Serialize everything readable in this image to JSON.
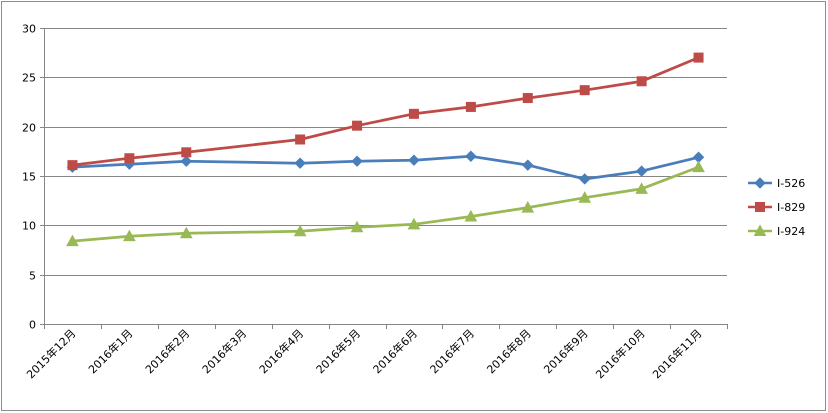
{
  "chart_data": {
    "type": "line",
    "title": "",
    "xlabel": "",
    "ylabel": "",
    "ylim": [
      0,
      30
    ],
    "yticks": [
      0,
      5,
      10,
      15,
      20,
      25,
      30
    ],
    "grid": true,
    "legend_position": "right",
    "x_positions": [
      0,
      1,
      2,
      3,
      4,
      5,
      6,
      7,
      8,
      9,
      10,
      11
    ],
    "categories": [
      "2015年12月",
      "2016年1月",
      "2016年2月",
      "2016年3月",
      "2016年4月",
      "2016年5月",
      "2016年6月",
      "2016年7月",
      "2016年8月",
      "2016年9月",
      "2016年10月",
      "2016年11月"
    ],
    "series": [
      {
        "name": "I-526",
        "color": "#4a7ebb",
        "marker": "diamond",
        "points": [
          [
            0,
            15.9
          ],
          [
            1,
            16.2
          ],
          [
            2,
            16.5
          ],
          [
            4,
            16.3
          ],
          [
            5,
            16.5
          ],
          [
            6,
            16.6
          ],
          [
            7,
            17.0
          ],
          [
            8,
            16.1
          ],
          [
            9,
            14.7
          ],
          [
            10,
            15.5
          ],
          [
            11,
            16.9
          ]
        ]
      },
      {
        "name": "I-829",
        "color": "#be4b48",
        "marker": "square",
        "points": [
          [
            0,
            16.1
          ],
          [
            1,
            16.8
          ],
          [
            2,
            17.4
          ],
          [
            4,
            18.7
          ],
          [
            5,
            20.1
          ],
          [
            6,
            21.3
          ],
          [
            7,
            22.0
          ],
          [
            8,
            22.9
          ],
          [
            9,
            23.7
          ],
          [
            10,
            24.6
          ],
          [
            11,
            27.0
          ]
        ]
      },
      {
        "name": "I-924",
        "color": "#98b954",
        "marker": "triangle",
        "points": [
          [
            0,
            8.4
          ],
          [
            1,
            8.9
          ],
          [
            2,
            9.2
          ],
          [
            4,
            9.4
          ],
          [
            5,
            9.8
          ],
          [
            6,
            10.1
          ],
          [
            7,
            10.9
          ],
          [
            8,
            11.8
          ],
          [
            9,
            12.8
          ],
          [
            10,
            13.7
          ],
          [
            11,
            15.9
          ]
        ]
      }
    ]
  }
}
